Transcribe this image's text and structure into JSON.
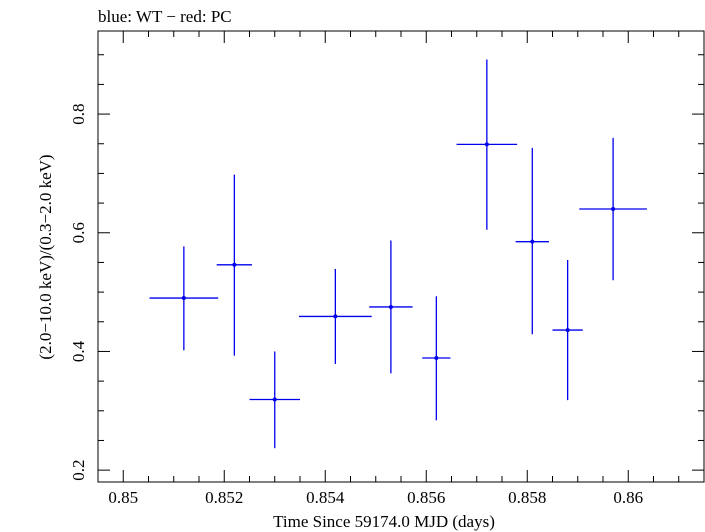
{
  "chart_data": {
    "type": "scatter",
    "title": "blue: WT − red: PC",
    "xlabel": "Time Since 59174.0 MJD (days)",
    "ylabel": "(2.0−10.0 keV)/(0.3−2.0 keV)",
    "xlim": [
      0.8495,
      0.8615
    ],
    "ylim": [
      0.18,
      0.94
    ],
    "xticks": [
      0.85,
      0.852,
      0.854,
      0.856,
      0.858,
      0.86
    ],
    "xtick_labels": [
      "0.85",
      "0.852",
      "0.854",
      "0.856",
      "0.858",
      "0.86"
    ],
    "yticks": [
      0.2,
      0.4,
      0.6,
      0.8
    ],
    "ytick_labels": [
      "0.2",
      "0.4",
      "0.6",
      "0.8"
    ],
    "grid": false,
    "series": [
      {
        "color": "#0000ee",
        "points": [
          {
            "x": 0.8512,
            "xerr": 0.00068,
            "y": 0.49,
            "yerr_low": 0.088,
            "yerr_high": 0.087
          },
          {
            "x": 0.8522,
            "xerr": 0.00035,
            "y": 0.546,
            "yerr_low": 0.153,
            "yerr_high": 0.152
          },
          {
            "x": 0.853,
            "xerr": 0.0005,
            "y": 0.319,
            "yerr_low": 0.082,
            "yerr_high": 0.081
          },
          {
            "x": 0.8542,
            "xerr": 0.00072,
            "y": 0.459,
            "yerr_low": 0.08,
            "yerr_high": 0.08
          },
          {
            "x": 0.8553,
            "xerr": 0.00043,
            "y": 0.475,
            "yerr_low": 0.112,
            "yerr_high": 0.112
          },
          {
            "x": 0.8562,
            "xerr": 0.00028,
            "y": 0.389,
            "yerr_low": 0.105,
            "yerr_high": 0.104
          },
          {
            "x": 0.8572,
            "xerr": 0.0006,
            "y": 0.749,
            "yerr_low": 0.144,
            "yerr_high": 0.143
          },
          {
            "x": 0.8581,
            "xerr": 0.00033,
            "y": 0.585,
            "yerr_low": 0.156,
            "yerr_high": 0.158
          },
          {
            "x": 0.8588,
            "xerr": 0.0003,
            "y": 0.436,
            "yerr_low": 0.118,
            "yerr_high": 0.118
          },
          {
            "x": 0.8597,
            "xerr": 0.00067,
            "y": 0.64,
            "yerr_low": 0.12,
            "yerr_high": 0.12
          }
        ]
      }
    ]
  }
}
